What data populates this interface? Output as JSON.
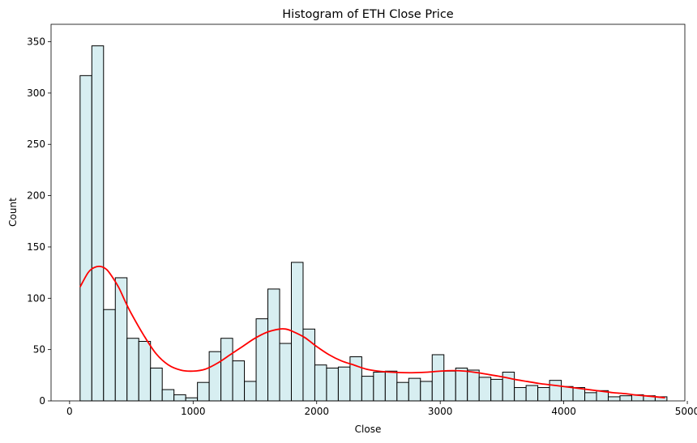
{
  "chart_data": {
    "type": "bar",
    "title": "Histogram of ETH Close Price",
    "xlabel": "Close",
    "ylabel": "Count",
    "xlim": [
      -150,
      4980
    ],
    "ylim": [
      0,
      367
    ],
    "xticks": [
      0,
      1000,
      2000,
      3000,
      4000,
      5000
    ],
    "yticks": [
      0,
      50,
      100,
      150,
      200,
      250,
      300,
      350
    ],
    "grid": false,
    "bin_edges": [
      85,
      180,
      275,
      370,
      465,
      560,
      655,
      750,
      845,
      940,
      1035,
      1130,
      1225,
      1320,
      1415,
      1510,
      1605,
      1700,
      1795,
      1890,
      1985,
      2080,
      2175,
      2270,
      2365,
      2460,
      2555,
      2650,
      2745,
      2840,
      2935,
      3030,
      3125,
      3220,
      3315,
      3410,
      3505,
      3600,
      3695,
      3790,
      3885,
      3980,
      4075,
      4170,
      4265,
      4360,
      4455,
      4550,
      4645,
      4740,
      4835
    ],
    "counts": [
      317,
      346,
      89,
      120,
      61,
      58,
      32,
      11,
      6,
      3,
      18,
      48,
      61,
      39,
      19,
      80,
      109,
      56,
      135,
      70,
      35,
      32,
      33,
      43,
      24,
      28,
      29,
      18,
      22,
      19,
      45,
      29,
      32,
      30,
      23,
      21,
      28,
      13,
      15,
      13,
      20,
      14,
      13,
      8,
      10,
      4,
      5,
      6,
      5,
      4
    ],
    "bar_fill": "#d7eef1",
    "bar_edge": "#000000",
    "kde": {
      "color": "#ff0000",
      "x": [
        85,
        150,
        200,
        250,
        300,
        350,
        400,
        450,
        500,
        600,
        700,
        800,
        900,
        1000,
        1100,
        1200,
        1300,
        1400,
        1500,
        1600,
        1700,
        1750,
        1800,
        1900,
        2000,
        2100,
        2200,
        2300,
        2400,
        2500,
        2600,
        2700,
        2800,
        2900,
        3000,
        3100,
        3200,
        3300,
        3400,
        3500,
        3600,
        3700,
        3800,
        3900,
        4000,
        4100,
        4200,
        4300,
        4400,
        4500,
        4600,
        4700,
        4820
      ],
      "y": [
        111,
        125,
        130,
        131,
        128,
        120,
        110,
        97,
        85,
        64,
        46,
        35,
        30,
        29,
        31,
        37,
        45,
        53,
        61,
        67,
        70,
        70,
        68,
        62,
        53,
        45,
        39,
        35,
        31,
        29,
        28,
        27.5,
        27.5,
        28,
        29,
        29.5,
        29,
        27.5,
        25.5,
        23.5,
        21,
        19,
        17,
        15.5,
        14,
        12.5,
        11,
        9.5,
        8,
        7,
        5.5,
        4.5,
        3
      ]
    }
  }
}
